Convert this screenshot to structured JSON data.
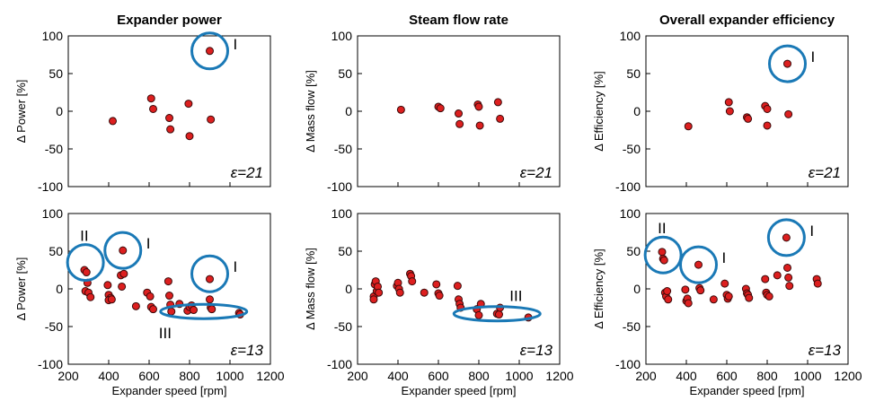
{
  "colors": {
    "marker": "#dd1f1f",
    "marker_edge": "#3a0a0a",
    "ring": "#1a79b6",
    "axis": "#000000"
  },
  "chart_data": [
    {
      "type": "scatter",
      "title": "Expander power",
      "xlabel": "",
      "ylabel": "Δ Power [%]",
      "xlim": [
        200,
        1200
      ],
      "ylim": [
        -100,
        100
      ],
      "xticks": [],
      "yticks": [
        "100",
        "50",
        "0",
        "-50",
        "-100"
      ],
      "annotation": "ε=21",
      "points": [
        {
          "x": 420,
          "y": -13
        },
        {
          "x": 610,
          "y": 17
        },
        {
          "x": 620,
          "y": 3
        },
        {
          "x": 700,
          "y": -9
        },
        {
          "x": 705,
          "y": -24
        },
        {
          "x": 795,
          "y": 10
        },
        {
          "x": 800,
          "y": -33
        },
        {
          "x": 900,
          "y": 80
        },
        {
          "x": 905,
          "y": -11
        }
      ],
      "circles": [
        {
          "label": "I",
          "x": 900,
          "y": 80
        }
      ]
    },
    {
      "type": "scatter",
      "title": "Steam flow rate",
      "xlabel": "",
      "ylabel": "Δ Mass flow [%]",
      "xlim": [
        200,
        1200
      ],
      "ylim": [
        -100,
        100
      ],
      "xticks": [],
      "yticks": [
        "100",
        "50",
        "0",
        "-50",
        "-100"
      ],
      "annotation": "ε=21",
      "points": [
        {
          "x": 415,
          "y": 2
        },
        {
          "x": 600,
          "y": 6
        },
        {
          "x": 610,
          "y": 4
        },
        {
          "x": 700,
          "y": -3
        },
        {
          "x": 705,
          "y": -17
        },
        {
          "x": 795,
          "y": 9
        },
        {
          "x": 800,
          "y": 6
        },
        {
          "x": 805,
          "y": -19
        },
        {
          "x": 895,
          "y": 12
        },
        {
          "x": 905,
          "y": -10
        }
      ],
      "circles": []
    },
    {
      "type": "scatter",
      "title": "Overall expander efficiency",
      "xlabel": "",
      "ylabel": "Δ Efficiency [%]",
      "xlim": [
        200,
        1200
      ],
      "ylim": [
        -100,
        100
      ],
      "xticks": [],
      "yticks": [
        "100",
        "50",
        "0",
        "-50",
        "-100"
      ],
      "annotation": "ε=21",
      "points": [
        {
          "x": 410,
          "y": -20
        },
        {
          "x": 610,
          "y": 12
        },
        {
          "x": 615,
          "y": 0
        },
        {
          "x": 700,
          "y": -8
        },
        {
          "x": 705,
          "y": -10
        },
        {
          "x": 790,
          "y": 7
        },
        {
          "x": 800,
          "y": 3
        },
        {
          "x": 800,
          "y": -19
        },
        {
          "x": 900,
          "y": 63
        },
        {
          "x": 905,
          "y": -4
        }
      ],
      "circles": [
        {
          "label": "I",
          "x": 900,
          "y": 63
        }
      ]
    },
    {
      "type": "scatter",
      "title": "",
      "xlabel": "Expander speed [rpm]",
      "ylabel": "Δ Power [%]",
      "xlim": [
        200,
        1200
      ],
      "ylim": [
        -100,
        100
      ],
      "xticks": [
        "200",
        "400",
        "600",
        "800",
        "1000",
        "1200"
      ],
      "yticks": [
        "100",
        "50",
        "0",
        "-50",
        "-100"
      ],
      "annotation": "ε=13",
      "points": [
        {
          "x": 280,
          "y": 25
        },
        {
          "x": 290,
          "y": 22
        },
        {
          "x": 295,
          "y": 8
        },
        {
          "x": 285,
          "y": -3
        },
        {
          "x": 300,
          "y": -5
        },
        {
          "x": 310,
          "y": -11
        },
        {
          "x": 395,
          "y": 5
        },
        {
          "x": 400,
          "y": -8
        },
        {
          "x": 410,
          "y": -12
        },
        {
          "x": 400,
          "y": -15
        },
        {
          "x": 415,
          "y": -14
        },
        {
          "x": 460,
          "y": 18
        },
        {
          "x": 465,
          "y": 3
        },
        {
          "x": 470,
          "y": 51
        },
        {
          "x": 475,
          "y": 20
        },
        {
          "x": 535,
          "y": -23
        },
        {
          "x": 590,
          "y": -5
        },
        {
          "x": 605,
          "y": -10
        },
        {
          "x": 610,
          "y": -24
        },
        {
          "x": 620,
          "y": -27
        },
        {
          "x": 695,
          "y": 10
        },
        {
          "x": 700,
          "y": -9
        },
        {
          "x": 705,
          "y": -21
        },
        {
          "x": 710,
          "y": -30
        },
        {
          "x": 750,
          "y": -20
        },
        {
          "x": 790,
          "y": -29
        },
        {
          "x": 800,
          "y": -24
        },
        {
          "x": 810,
          "y": -22
        },
        {
          "x": 820,
          "y": -28
        },
        {
          "x": 900,
          "y": 13
        },
        {
          "x": 900,
          "y": -14
        },
        {
          "x": 905,
          "y": -25
        },
        {
          "x": 910,
          "y": -27
        },
        {
          "x": 1045,
          "y": -32
        },
        {
          "x": 1050,
          "y": -34
        }
      ],
      "circles": [
        {
          "label": "II",
          "x": 285,
          "y": 35
        },
        {
          "label": "I",
          "x": 470,
          "y": 51
        },
        {
          "label": "I",
          "x": 900,
          "y": 20
        }
      ],
      "ellipses": [
        {
          "label": "III",
          "x": 870,
          "y": -30
        }
      ]
    },
    {
      "type": "scatter",
      "title": "",
      "xlabel": "Expander speed [rpm]",
      "ylabel": "Δ Mass flow [%]",
      "xlim": [
        200,
        1200
      ],
      "ylim": [
        -100,
        100
      ],
      "xticks": [
        "200",
        "400",
        "600",
        "800",
        "1000",
        "1200"
      ],
      "yticks": [
        "100",
        "50",
        "0",
        "-50",
        "-100"
      ],
      "annotation": "ε=13",
      "points": [
        {
          "x": 280,
          "y": -10
        },
        {
          "x": 285,
          "y": 6
        },
        {
          "x": 290,
          "y": 10
        },
        {
          "x": 295,
          "y": -3
        },
        {
          "x": 300,
          "y": 3
        },
        {
          "x": 305,
          "y": -5
        },
        {
          "x": 280,
          "y": -14
        },
        {
          "x": 395,
          "y": 4
        },
        {
          "x": 400,
          "y": 8
        },
        {
          "x": 405,
          "y": 0
        },
        {
          "x": 410,
          "y": -5
        },
        {
          "x": 460,
          "y": 20
        },
        {
          "x": 465,
          "y": 17
        },
        {
          "x": 470,
          "y": 10
        },
        {
          "x": 530,
          "y": -5
        },
        {
          "x": 590,
          "y": 6
        },
        {
          "x": 600,
          "y": -6
        },
        {
          "x": 605,
          "y": -9
        },
        {
          "x": 695,
          "y": 4
        },
        {
          "x": 700,
          "y": -14
        },
        {
          "x": 705,
          "y": -20
        },
        {
          "x": 710,
          "y": -25
        },
        {
          "x": 790,
          "y": -27
        },
        {
          "x": 800,
          "y": -35
        },
        {
          "x": 810,
          "y": -20
        },
        {
          "x": 890,
          "y": -33
        },
        {
          "x": 900,
          "y": -34
        },
        {
          "x": 905,
          "y": -25
        },
        {
          "x": 1045,
          "y": -38
        }
      ],
      "circles": [],
      "ellipses": [
        {
          "label": "III",
          "x": 890,
          "y": -33
        }
      ]
    },
    {
      "type": "scatter",
      "title": "",
      "xlabel": "Expander speed [rpm]",
      "ylabel": "Δ Efficiency [%]",
      "xlim": [
        200,
        1200
      ],
      "ylim": [
        -100,
        100
      ],
      "xticks": [
        "200",
        "400",
        "600",
        "800",
        "1000",
        "1200"
      ],
      "yticks": [
        "100",
        "50",
        "0",
        "-50",
        "-100"
      ],
      "annotation": "ε=13",
      "points": [
        {
          "x": 280,
          "y": 49
        },
        {
          "x": 285,
          "y": 40
        },
        {
          "x": 290,
          "y": 38
        },
        {
          "x": 295,
          "y": -5
        },
        {
          "x": 300,
          "y": -10
        },
        {
          "x": 305,
          "y": -3
        },
        {
          "x": 310,
          "y": -14
        },
        {
          "x": 395,
          "y": -1
        },
        {
          "x": 400,
          "y": -16
        },
        {
          "x": 405,
          "y": -13
        },
        {
          "x": 410,
          "y": -19
        },
        {
          "x": 460,
          "y": 32
        },
        {
          "x": 465,
          "y": 1
        },
        {
          "x": 470,
          "y": -2
        },
        {
          "x": 535,
          "y": -14
        },
        {
          "x": 590,
          "y": 7
        },
        {
          "x": 600,
          "y": -8
        },
        {
          "x": 605,
          "y": -13
        },
        {
          "x": 610,
          "y": -10
        },
        {
          "x": 695,
          "y": 0
        },
        {
          "x": 700,
          "y": -6
        },
        {
          "x": 705,
          "y": -8
        },
        {
          "x": 710,
          "y": -12
        },
        {
          "x": 790,
          "y": 13
        },
        {
          "x": 795,
          "y": -5
        },
        {
          "x": 800,
          "y": -8
        },
        {
          "x": 810,
          "y": -10
        },
        {
          "x": 850,
          "y": 18
        },
        {
          "x": 895,
          "y": 68
        },
        {
          "x": 900,
          "y": 28
        },
        {
          "x": 905,
          "y": 15
        },
        {
          "x": 910,
          "y": 4
        },
        {
          "x": 1045,
          "y": 13
        },
        {
          "x": 1050,
          "y": 7
        }
      ],
      "circles": [
        {
          "label": "II",
          "x": 285,
          "y": 45
        },
        {
          "label": "I",
          "x": 460,
          "y": 32
        },
        {
          "label": "I",
          "x": 895,
          "y": 68
        }
      ]
    }
  ]
}
